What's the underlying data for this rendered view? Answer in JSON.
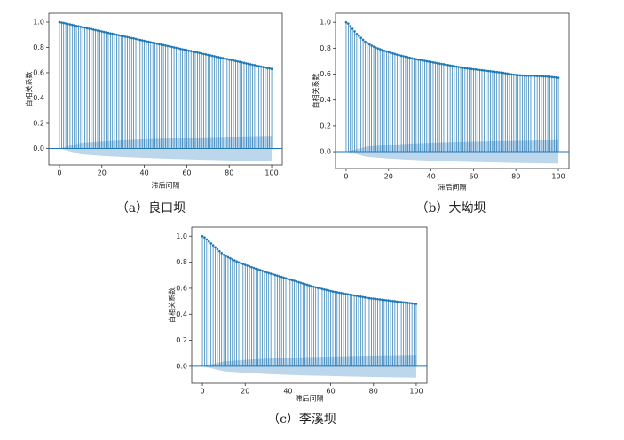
{
  "chart_data": [
    {
      "type": "stem",
      "caption": "（a）良口坝",
      "xlabel": "滞后间隔",
      "ylabel": "自相关系数",
      "color": "#1f77b4",
      "band_color": "#a6c8e6",
      "xlim": [
        -5,
        105
      ],
      "ylim": [
        -0.13,
        1.07
      ],
      "xticks": [
        0,
        20,
        40,
        60,
        80,
        100
      ],
      "yticks": [
        {
          "value": 0,
          "label": "0.0"
        },
        0.2,
        0.4,
        0.6,
        0.8,
        {
          "value": 1,
          "label": "1.0"
        }
      ],
      "x": [
        0,
        1,
        2,
        3,
        4,
        5,
        6,
        7,
        8,
        9,
        10,
        11,
        12,
        13,
        14,
        15,
        16,
        17,
        18,
        19,
        20,
        21,
        22,
        23,
        24,
        25,
        26,
        27,
        28,
        29,
        30,
        31,
        32,
        33,
        34,
        35,
        36,
        37,
        38,
        39,
        40,
        41,
        42,
        43,
        44,
        45,
        46,
        47,
        48,
        49,
        50,
        51,
        52,
        53,
        54,
        55,
        56,
        57,
        58,
        59,
        60,
        61,
        62,
        63,
        64,
        65,
        66,
        67,
        68,
        69,
        70,
        71,
        72,
        73,
        74,
        75,
        76,
        77,
        78,
        79,
        80,
        81,
        82,
        83,
        84,
        85,
        86,
        87,
        88,
        89,
        90,
        91,
        92,
        93,
        94,
        95,
        96,
        97,
        98,
        99,
        100
      ],
      "values": [
        1.0,
        0.996,
        0.993,
        0.989,
        0.985,
        0.982,
        0.978,
        0.974,
        0.97,
        0.967,
        0.963,
        0.959,
        0.956,
        0.952,
        0.948,
        0.945,
        0.941,
        0.937,
        0.933,
        0.93,
        0.926,
        0.922,
        0.919,
        0.915,
        0.911,
        0.908,
        0.904,
        0.9,
        0.896,
        0.893,
        0.889,
        0.885,
        0.882,
        0.878,
        0.874,
        0.871,
        0.867,
        0.863,
        0.859,
        0.856,
        0.852,
        0.848,
        0.845,
        0.841,
        0.837,
        0.834,
        0.83,
        0.826,
        0.822,
        0.819,
        0.815,
        0.811,
        0.808,
        0.804,
        0.8,
        0.797,
        0.793,
        0.789,
        0.785,
        0.782,
        0.778,
        0.774,
        0.771,
        0.767,
        0.763,
        0.76,
        0.756,
        0.752,
        0.748,
        0.745,
        0.741,
        0.737,
        0.734,
        0.73,
        0.726,
        0.723,
        0.719,
        0.715,
        0.711,
        0.708,
        0.704,
        0.7,
        0.697,
        0.693,
        0.689,
        0.686,
        0.682,
        0.678,
        0.674,
        0.671,
        0.667,
        0.663,
        0.66,
        0.656,
        0.652,
        0.649,
        0.645,
        0.641,
        0.637,
        0.634,
        0.63
      ],
      "band_x": [
        0,
        10,
        20,
        30,
        40,
        50,
        60,
        70,
        80,
        90,
        100
      ],
      "band_upper": [
        0,
        0.045,
        0.058,
        0.067,
        0.074,
        0.08,
        0.085,
        0.09,
        0.094,
        0.097,
        0.1
      ],
      "band_lower": [
        0,
        -0.045,
        -0.058,
        -0.067,
        -0.074,
        -0.08,
        -0.085,
        -0.09,
        -0.094,
        -0.097,
        -0.1
      ]
    },
    {
      "type": "stem",
      "caption": "（b）大坳坝",
      "xlabel": "滞后间隔",
      "ylabel": "自相关系数",
      "color": "#1f77b4",
      "band_color": "#a6c8e6",
      "xlim": [
        -5,
        105
      ],
      "ylim": [
        -0.13,
        1.07
      ],
      "xticks": [
        0,
        20,
        40,
        60,
        80,
        100
      ],
      "yticks": [
        {
          "value": 0,
          "label": "0.0"
        },
        0.2,
        0.4,
        0.6,
        0.8,
        {
          "value": 1,
          "label": "1.0"
        }
      ],
      "x": [
        0,
        1,
        2,
        3,
        4,
        5,
        6,
        7,
        8,
        9,
        10,
        11,
        12,
        13,
        14,
        15,
        16,
        17,
        18,
        19,
        20,
        21,
        22,
        23,
        24,
        25,
        26,
        27,
        28,
        29,
        30,
        31,
        32,
        33,
        34,
        35,
        36,
        37,
        38,
        39,
        40,
        41,
        42,
        43,
        44,
        45,
        46,
        47,
        48,
        49,
        50,
        51,
        52,
        53,
        54,
        55,
        56,
        57,
        58,
        59,
        60,
        61,
        62,
        63,
        64,
        65,
        66,
        67,
        68,
        69,
        70,
        71,
        72,
        73,
        74,
        75,
        76,
        77,
        78,
        79,
        80,
        81,
        82,
        83,
        84,
        85,
        86,
        87,
        88,
        89,
        90,
        91,
        92,
        93,
        94,
        95,
        96,
        97,
        98,
        99,
        100
      ],
      "values": [
        1.0,
        0.99,
        0.97,
        0.95,
        0.93,
        0.91,
        0.895,
        0.88,
        0.865,
        0.85,
        0.84,
        0.83,
        0.82,
        0.812,
        0.805,
        0.798,
        0.792,
        0.786,
        0.78,
        0.775,
        0.77,
        0.765,
        0.76,
        0.755,
        0.75,
        0.746,
        0.742,
        0.738,
        0.734,
        0.73,
        0.726,
        0.722,
        0.718,
        0.715,
        0.712,
        0.709,
        0.706,
        0.703,
        0.7,
        0.697,
        0.694,
        0.691,
        0.688,
        0.685,
        0.682,
        0.679,
        0.676,
        0.673,
        0.67,
        0.667,
        0.664,
        0.661,
        0.658,
        0.655,
        0.652,
        0.649,
        0.646,
        0.644,
        0.642,
        0.64,
        0.638,
        0.636,
        0.634,
        0.632,
        0.63,
        0.628,
        0.626,
        0.624,
        0.622,
        0.62,
        0.618,
        0.616,
        0.614,
        0.612,
        0.61,
        0.607,
        0.604,
        0.601,
        0.598,
        0.596,
        0.594,
        0.592,
        0.591,
        0.59,
        0.589,
        0.588,
        0.588,
        0.588,
        0.588,
        0.587,
        0.586,
        0.585,
        0.584,
        0.583,
        0.582,
        0.581,
        0.58,
        0.578,
        0.576,
        0.574,
        0.572
      ],
      "band_x": [
        0,
        10,
        20,
        30,
        40,
        50,
        60,
        70,
        80,
        90,
        100
      ],
      "band_upper": [
        0,
        0.04,
        0.053,
        0.062,
        0.069,
        0.075,
        0.079,
        0.083,
        0.086,
        0.089,
        0.091
      ],
      "band_lower": [
        0,
        -0.04,
        -0.053,
        -0.062,
        -0.069,
        -0.075,
        -0.079,
        -0.083,
        -0.086,
        -0.089,
        -0.091
      ]
    },
    {
      "type": "stem",
      "caption": "（c）李溪坝",
      "xlabel": "滞后间隔",
      "ylabel": "自相关系数",
      "color": "#1f77b4",
      "band_color": "#a6c8e6",
      "xlim": [
        -5,
        105
      ],
      "ylim": [
        -0.13,
        1.07
      ],
      "xticks": [
        0,
        20,
        40,
        60,
        80,
        100
      ],
      "yticks": [
        {
          "value": 0,
          "label": "0.0"
        },
        0.2,
        0.4,
        0.6,
        0.8,
        {
          "value": 1,
          "label": "1.0"
        }
      ],
      "x": [
        0,
        1,
        2,
        3,
        4,
        5,
        6,
        7,
        8,
        9,
        10,
        11,
        12,
        13,
        14,
        15,
        16,
        17,
        18,
        19,
        20,
        21,
        22,
        23,
        24,
        25,
        26,
        27,
        28,
        29,
        30,
        31,
        32,
        33,
        34,
        35,
        36,
        37,
        38,
        39,
        40,
        41,
        42,
        43,
        44,
        45,
        46,
        47,
        48,
        49,
        50,
        51,
        52,
        53,
        54,
        55,
        56,
        57,
        58,
        59,
        60,
        61,
        62,
        63,
        64,
        65,
        66,
        67,
        68,
        69,
        70,
        71,
        72,
        73,
        74,
        75,
        76,
        77,
        78,
        79,
        80,
        81,
        82,
        83,
        84,
        85,
        86,
        87,
        88,
        89,
        90,
        91,
        92,
        93,
        94,
        95,
        96,
        97,
        98,
        99,
        100
      ],
      "values": [
        1.0,
        0.99,
        0.975,
        0.96,
        0.945,
        0.93,
        0.915,
        0.9,
        0.885,
        0.87,
        0.857,
        0.848,
        0.839,
        0.83,
        0.822,
        0.814,
        0.806,
        0.799,
        0.792,
        0.786,
        0.78,
        0.774,
        0.768,
        0.762,
        0.756,
        0.75,
        0.745,
        0.74,
        0.734,
        0.728,
        0.722,
        0.717,
        0.712,
        0.707,
        0.702,
        0.697,
        0.692,
        0.687,
        0.682,
        0.677,
        0.672,
        0.667,
        0.662,
        0.657,
        0.652,
        0.647,
        0.642,
        0.637,
        0.632,
        0.627,
        0.622,
        0.617,
        0.612,
        0.607,
        0.603,
        0.599,
        0.595,
        0.591,
        0.587,
        0.583,
        0.579,
        0.575,
        0.572,
        0.569,
        0.566,
        0.563,
        0.56,
        0.557,
        0.554,
        0.551,
        0.548,
        0.545,
        0.542,
        0.539,
        0.536,
        0.533,
        0.53,
        0.527,
        0.524,
        0.522,
        0.52,
        0.518,
        0.516,
        0.514,
        0.512,
        0.51,
        0.508,
        0.506,
        0.504,
        0.502,
        0.5,
        0.498,
        0.496,
        0.494,
        0.492,
        0.49,
        0.488,
        0.486,
        0.484,
        0.482,
        0.48
      ],
      "band_x": [
        0,
        10,
        20,
        30,
        40,
        50,
        60,
        70,
        80,
        90,
        100
      ],
      "band_upper": [
        0,
        0.038,
        0.05,
        0.059,
        0.066,
        0.071,
        0.075,
        0.079,
        0.082,
        0.085,
        0.087
      ],
      "band_lower": [
        0,
        -0.038,
        -0.05,
        -0.059,
        -0.066,
        -0.071,
        -0.075,
        -0.079,
        -0.082,
        -0.085,
        -0.087
      ]
    }
  ]
}
